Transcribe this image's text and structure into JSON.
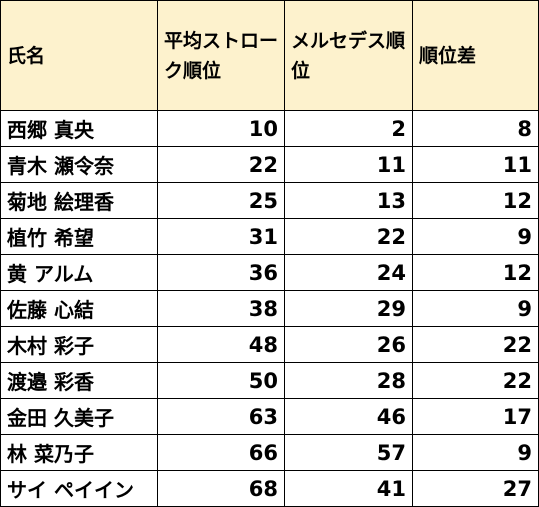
{
  "table": {
    "headers": [
      "氏名",
      "平均ストローク順位",
      "メルセデス順位",
      "順位差"
    ],
    "rows": [
      {
        "name": "西郷 真央",
        "avg_rank": "10",
        "mercedes_rank": "2",
        "diff": "8"
      },
      {
        "name": "青木 瀬令奈",
        "avg_rank": "22",
        "mercedes_rank": "11",
        "diff": "11"
      },
      {
        "name": "菊地 絵理香",
        "avg_rank": "25",
        "mercedes_rank": "13",
        "diff": "12"
      },
      {
        "name": "植竹 希望",
        "avg_rank": "31",
        "mercedes_rank": "22",
        "diff": "9"
      },
      {
        "name": "黄 アルム",
        "avg_rank": "36",
        "mercedes_rank": "24",
        "diff": "12"
      },
      {
        "name": "佐藤 心結",
        "avg_rank": "38",
        "mercedes_rank": "29",
        "diff": "9"
      },
      {
        "name": "木村 彩子",
        "avg_rank": "48",
        "mercedes_rank": "26",
        "diff": "22"
      },
      {
        "name": "渡邉 彩香",
        "avg_rank": "50",
        "mercedes_rank": "28",
        "diff": "22"
      },
      {
        "name": "金田 久美子",
        "avg_rank": "63",
        "mercedes_rank": "46",
        "diff": "17"
      },
      {
        "name": "林 菜乃子",
        "avg_rank": "66",
        "mercedes_rank": "57",
        "diff": "9"
      },
      {
        "name": "サイ ペイイン",
        "avg_rank": "68",
        "mercedes_rank": "41",
        "diff": "27"
      }
    ]
  },
  "colors": {
    "header_background": "#fdf2cd",
    "border": "#000000",
    "text": "#000000"
  }
}
